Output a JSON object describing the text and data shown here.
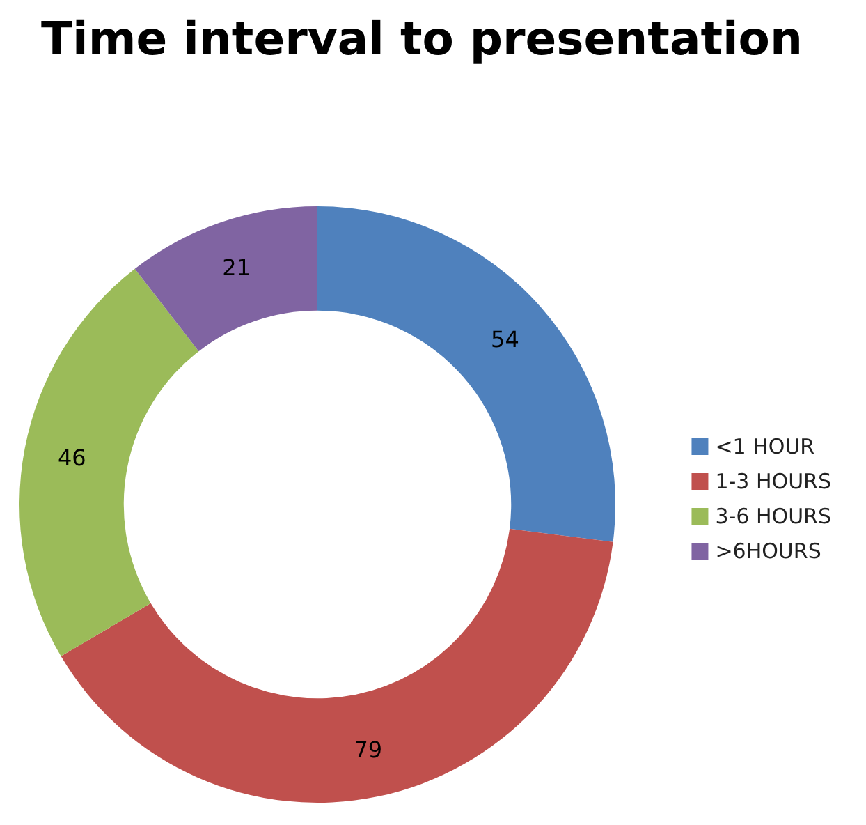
{
  "chart_data": {
    "type": "donut",
    "title": "Time interval to presentation",
    "categories": [
      "<1 HOUR",
      "1-3 HOURS",
      "3-6 HOURS",
      ">6HOURS"
    ],
    "values": [
      54,
      79,
      46,
      21
    ],
    "colors": [
      "#4f81bd",
      "#c0504d",
      "#9bbb59",
      "#8064a2"
    ],
    "data_labels": true,
    "legend": "right"
  }
}
